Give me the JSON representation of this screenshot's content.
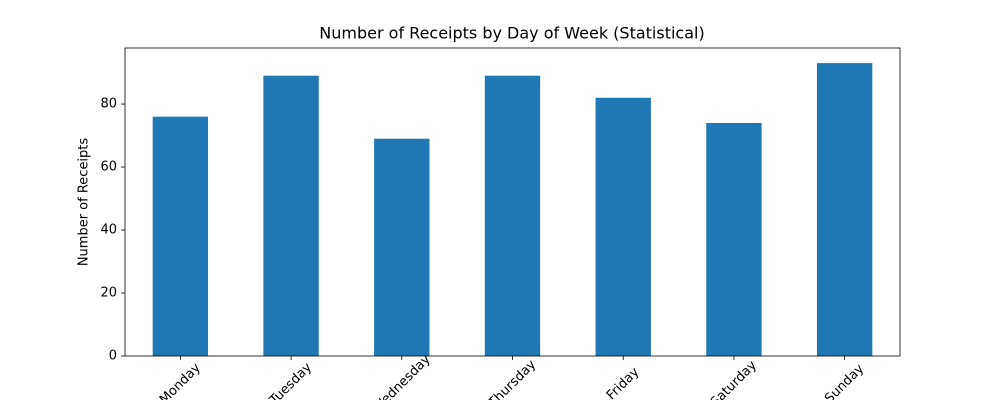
{
  "chart_data": {
    "type": "bar",
    "title": "Number of Receipts by Day of Week (Statistical)",
    "ylabel": "Number of Receipts",
    "categories": [
      "Monday",
      "Tuesday",
      "Wednesday",
      "Thursday",
      "Friday",
      "Saturday",
      "Sunday"
    ],
    "values": [
      76,
      89,
      69,
      89,
      82,
      74,
      93
    ],
    "color": "#1f77b4",
    "ylim": [
      0,
      97.8
    ],
    "yticks": [
      0,
      20,
      40,
      60,
      80
    ],
    "grid": false
  }
}
